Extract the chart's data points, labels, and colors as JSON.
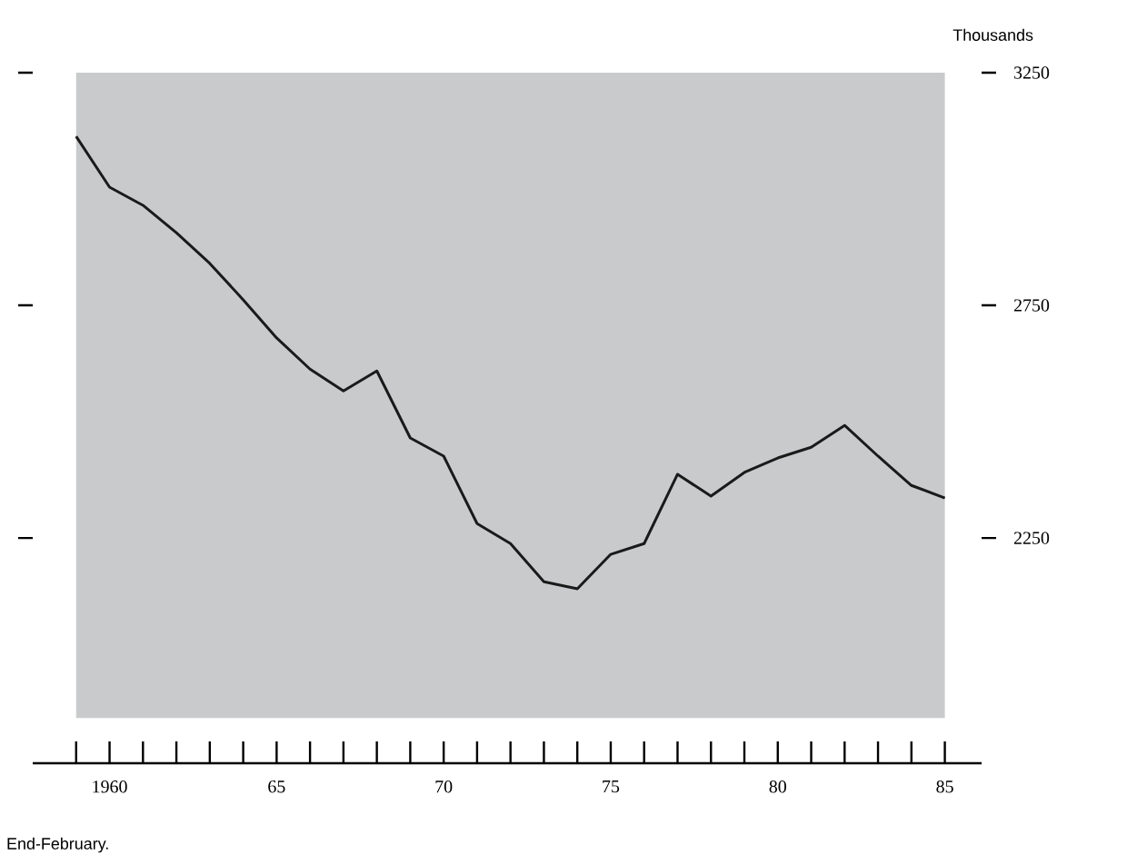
{
  "chart_data": {
    "type": "line",
    "ylabel": "Thousands",
    "annotations": [
      "End-February."
    ],
    "x": [
      1959,
      1960,
      1961,
      1962,
      1963,
      1964,
      1965,
      1966,
      1967,
      1968,
      1969,
      1970,
      1971,
      1972,
      1973,
      1974,
      1975,
      1976,
      1977,
      1978,
      1979,
      1980,
      1981,
      1982,
      1983,
      1984,
      1985
    ],
    "series": [
      {
        "color": "#1a1a1a",
        "values": [
          3113,
          3004,
          2965,
          2906,
          2840,
          2762,
          2680,
          2613,
          2566,
          2609,
          2465,
          2426,
          2281,
          2238,
          2156,
          2141,
          2215,
          2238,
          2387,
          2340,
          2391,
          2422,
          2445,
          2492,
          2426,
          2363,
          2336
        ]
      }
    ],
    "xlim": [
      1957.7,
      1986.1
    ],
    "ylim": [
      1766,
      3250
    ],
    "xticks": [
      {
        "value": 1959,
        "label": null
      },
      {
        "value": 1960,
        "label": "1960"
      },
      {
        "value": 1961,
        "label": null
      },
      {
        "value": 1962,
        "label": null
      },
      {
        "value": 1963,
        "label": null
      },
      {
        "value": 1964,
        "label": null
      },
      {
        "value": 1965,
        "label": "65"
      },
      {
        "value": 1966,
        "label": null
      },
      {
        "value": 1967,
        "label": null
      },
      {
        "value": 1968,
        "label": null
      },
      {
        "value": 1969,
        "label": null
      },
      {
        "value": 1970,
        "label": "70"
      },
      {
        "value": 1971,
        "label": null
      },
      {
        "value": 1972,
        "label": null
      },
      {
        "value": 1973,
        "label": null
      },
      {
        "value": 1974,
        "label": null
      },
      {
        "value": 1975,
        "label": "75"
      },
      {
        "value": 1976,
        "label": null
      },
      {
        "value": 1977,
        "label": null
      },
      {
        "value": 1978,
        "label": null
      },
      {
        "value": 1979,
        "label": null
      },
      {
        "value": 1980,
        "label": "80"
      },
      {
        "value": 1981,
        "label": null
      },
      {
        "value": 1982,
        "label": null
      },
      {
        "value": 1983,
        "label": null
      },
      {
        "value": 1984,
        "label": null
      },
      {
        "value": 1985,
        "label": "85"
      }
    ],
    "yticks": [
      2250,
      2750,
      3250
    ],
    "bands": [
      {
        "axis": "x",
        "from": 1959,
        "to": 1985,
        "color": "#c9cacb"
      }
    ],
    "grid": false,
    "marker": "none",
    "line_style": "solid"
  }
}
